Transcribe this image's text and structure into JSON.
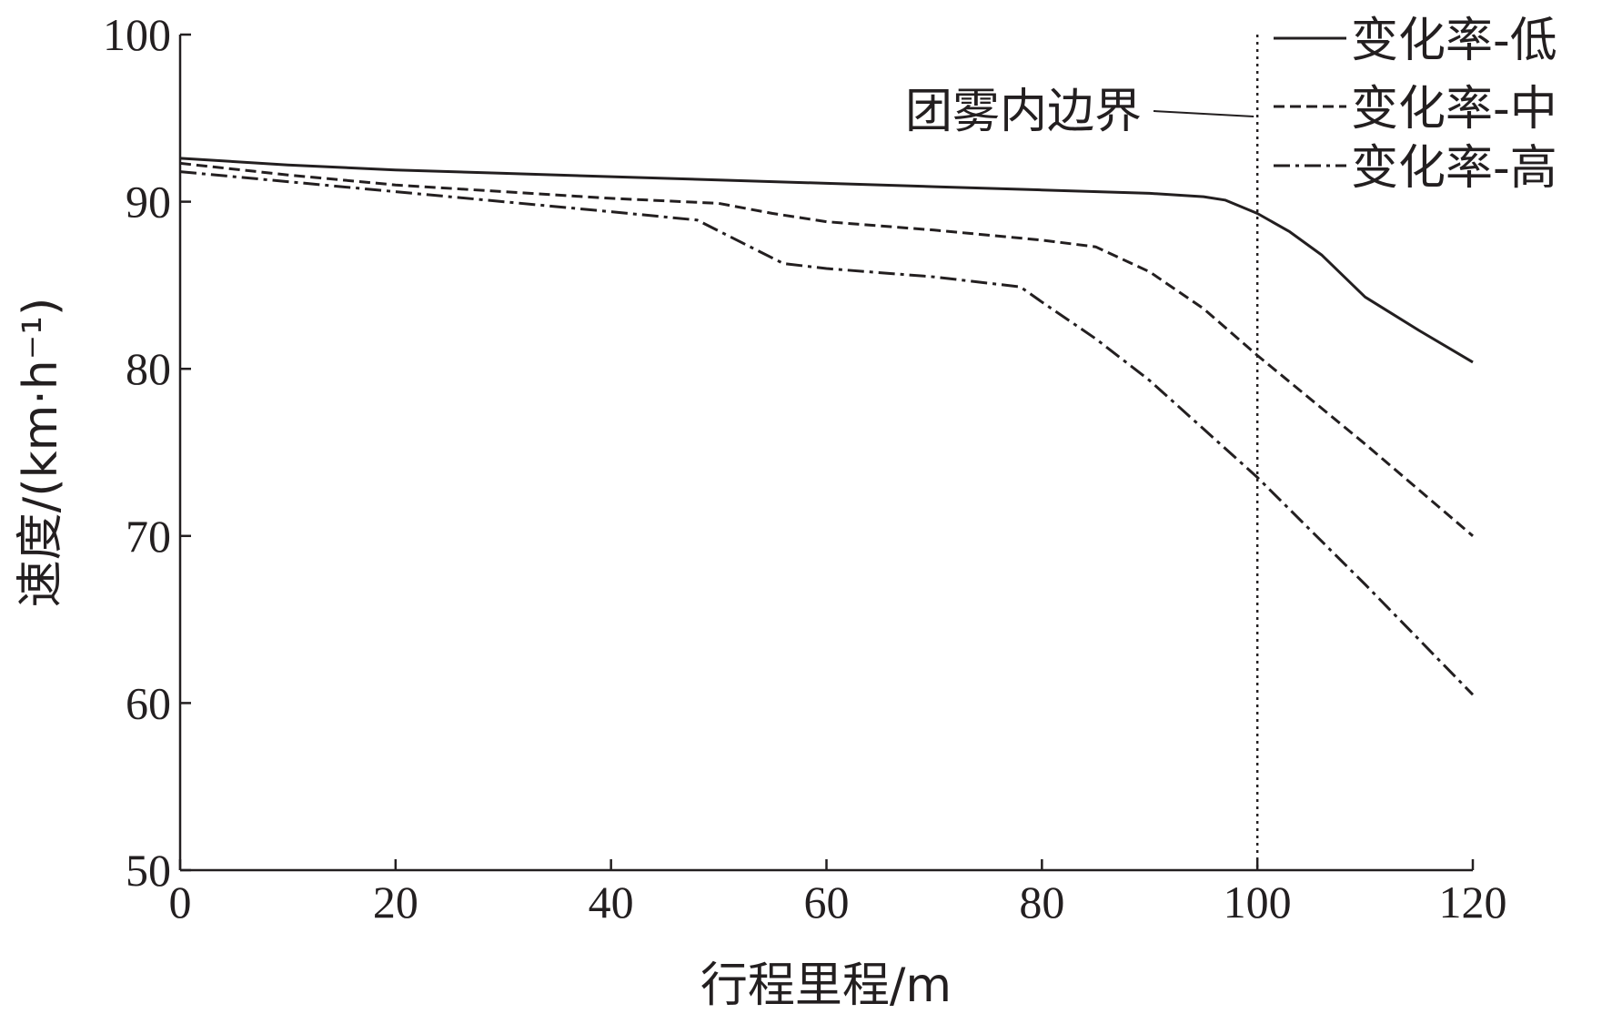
{
  "chart_data": {
    "type": "line",
    "title": "",
    "xlabel": "行程里程/m",
    "ylabel": "速度/(km·h⁻¹)",
    "xlim": [
      0,
      120
    ],
    "ylim": [
      50,
      100
    ],
    "xticks": [
      "0",
      "20",
      "40",
      "60",
      "80",
      "100",
      "120"
    ],
    "yticks": [
      "50",
      "60",
      "70",
      "80",
      "90",
      "100"
    ],
    "grid": false,
    "legend_position": "top-right",
    "series": [
      {
        "name": "变化率-低",
        "style": "solid",
        "x": [
          0,
          10,
          20,
          30,
          40,
          50,
          60,
          70,
          80,
          90,
          95,
          97,
          100,
          103,
          106,
          110,
          115,
          120
        ],
        "y": [
          92.6,
          92.2,
          91.9,
          91.7,
          91.5,
          91.3,
          91.1,
          90.9,
          90.7,
          90.5,
          90.3,
          90.1,
          89.3,
          88.2,
          86.8,
          84.3,
          82.3,
          80.4
        ]
      },
      {
        "name": "变化率-中",
        "style": "dashed",
        "x": [
          0,
          10,
          20,
          30,
          40,
          50,
          55,
          60,
          70,
          80,
          85,
          90,
          95,
          100,
          110,
          120
        ],
        "y": [
          92.3,
          91.6,
          91.0,
          90.6,
          90.2,
          89.9,
          89.3,
          88.8,
          88.3,
          87.7,
          87.3,
          85.8,
          83.6,
          80.8,
          75.5,
          70.0
        ]
      },
      {
        "name": "变化率-高",
        "style": "dashdot",
        "x": [
          0,
          10,
          20,
          30,
          40,
          48,
          52,
          56,
          60,
          70,
          78,
          80,
          85,
          90,
          95,
          100,
          105,
          110,
          115,
          120
        ],
        "y": [
          91.8,
          91.2,
          90.6,
          90.0,
          89.4,
          88.9,
          87.6,
          86.3,
          86.0,
          85.5,
          84.9,
          84.0,
          81.8,
          79.3,
          76.4,
          73.5,
          70.3,
          67.1,
          63.8,
          60.5
        ]
      }
    ],
    "annotations": [
      {
        "text": "团雾内边界",
        "x": 100,
        "style": "dotted-vertical-line"
      }
    ]
  }
}
